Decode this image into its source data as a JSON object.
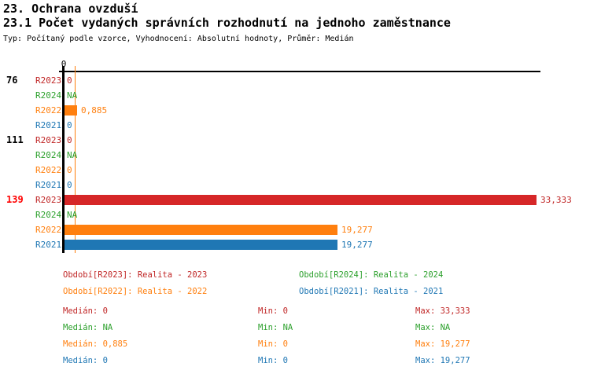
{
  "header": {
    "title1": "23. Ochrana ovzduší",
    "title2": "23.1 Počet vydaných správních rozhodnutí na jednoho zaměstnance",
    "subtitle": "Typ: Počítaný podle vzorce, Vyhodnocení: Absolutní hodnoty, Průměr: Medián"
  },
  "chart_data": {
    "type": "bar",
    "orientation": "horizontal",
    "axis": {
      "zero_label": "0",
      "xlim": [
        0,
        33.333
      ],
      "grid": false
    },
    "series_colors": {
      "R2023": {
        "text": "#c02626",
        "bar": "#d62728"
      },
      "R2024": {
        "text": "#2ca02c",
        "bar": "#2ca02c"
      },
      "R2022": {
        "text": "#ff7f0e",
        "bar": "#ff7f0e"
      },
      "R2021": {
        "text": "#1f77b4",
        "bar": "#1f77b4"
      }
    },
    "highlight_color": "#ff0000",
    "median_marker": {
      "series": "R2022",
      "value": 0.885
    },
    "groups": [
      {
        "label": "76",
        "highlight": false,
        "rows": [
          {
            "series": "R2023",
            "value": 0,
            "display": "0"
          },
          {
            "series": "R2024",
            "value": null,
            "display": "NA"
          },
          {
            "series": "R2022",
            "value": 0.885,
            "display": "0,885"
          },
          {
            "series": "R2021",
            "value": 0,
            "display": "0"
          }
        ]
      },
      {
        "label": "111",
        "highlight": false,
        "rows": [
          {
            "series": "R2023",
            "value": 0,
            "display": "0"
          },
          {
            "series": "R2024",
            "value": null,
            "display": "NA"
          },
          {
            "series": "R2022",
            "value": 0,
            "display": "0"
          },
          {
            "series": "R2021",
            "value": 0,
            "display": "0"
          }
        ]
      },
      {
        "label": "139",
        "highlight": true,
        "rows": [
          {
            "series": "R2023",
            "value": 33.333,
            "display": "33,333"
          },
          {
            "series": "R2024",
            "value": null,
            "display": "NA"
          },
          {
            "series": "R2022",
            "value": 19.277,
            "display": "19,277"
          },
          {
            "series": "R2021",
            "value": 19.277,
            "display": "19,277"
          }
        ]
      }
    ]
  },
  "legend": [
    {
      "series": "R2023",
      "label": "Období[R2023]: Realita - 2023"
    },
    {
      "series": "R2024",
      "label": "Období[R2024]: Realita - 2024"
    },
    {
      "series": "R2022",
      "label": "Období[R2022]: Realita - 2022"
    },
    {
      "series": "R2021",
      "label": "Období[R2021]: Realita - 2021"
    }
  ],
  "stats": [
    {
      "series": "R2023",
      "median": "Medián: 0",
      "min": "Min: 0",
      "max": "Max: 33,333"
    },
    {
      "series": "R2024",
      "median": "Medián: NA",
      "min": "Min: NA",
      "max": "Max: NA"
    },
    {
      "series": "R2022",
      "median": "Medián: 0,885",
      "min": "Min: 0",
      "max": "Max: 19,277"
    },
    {
      "series": "R2021",
      "median": "Medián: 0",
      "min": "Min: 0",
      "max": "Max: 19,277"
    }
  ]
}
